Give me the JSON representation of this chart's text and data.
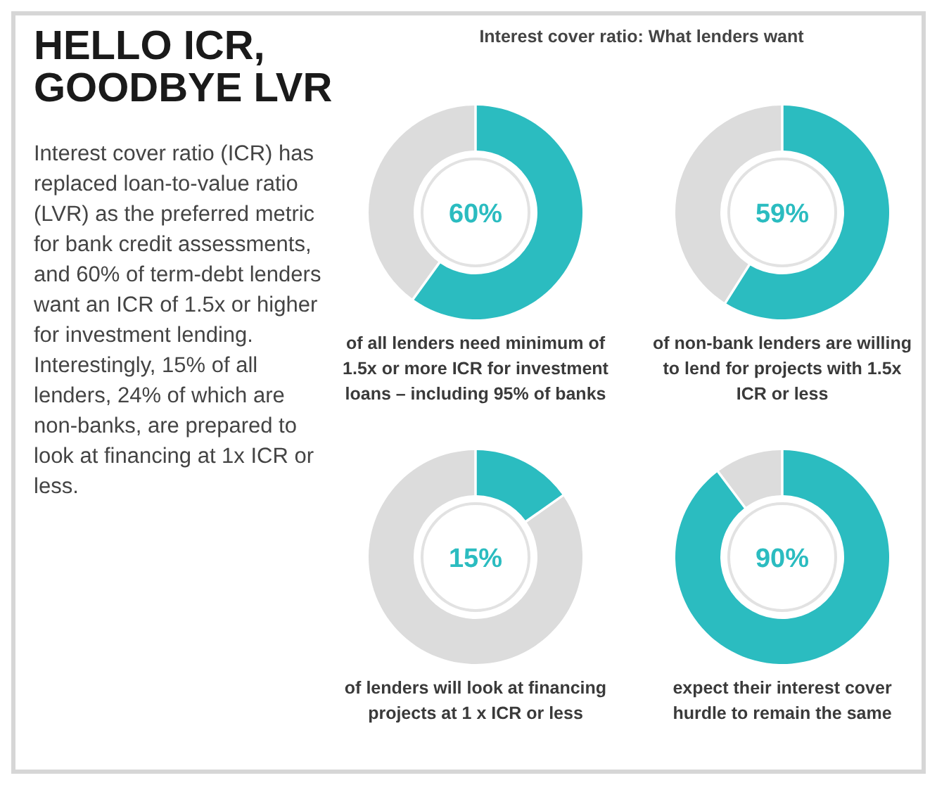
{
  "chart_data": [
    {
      "type": "other",
      "title": "HELLO ICR, GOODBYE LVR",
      "subtitle": "Interest cover ratio: What lenders want",
      "annotations": [
        "Interest cover ratio (ICR) has replaced loan-to-value ratio (LVR) as the preferred metric for bank credit assessments, and 60% of term-debt lenders want an ICR of 1.5x or higher for investment lending. Interestingly, 15% of all lenders, 24% of which are non-banks, are prepared to look at financing at 1x ICR or less."
      ]
    },
    {
      "type": "donut",
      "categories": [
        null,
        null
      ],
      "values": [
        60,
        40
      ],
      "colors": [
        "#2bbcc0",
        "#dcdcdc"
      ],
      "annotations": [
        "60%",
        "of all lenders need minimum of 1.5x or more ICR for investment loans – including 95% of banks"
      ]
    },
    {
      "type": "donut",
      "categories": [
        null,
        null
      ],
      "values": [
        59,
        41
      ],
      "colors": [
        "#2bbcc0",
        "#dcdcdc"
      ],
      "annotations": [
        "59%",
        "of non-bank lenders are willing to lend for projects with 1.5x ICR or less"
      ]
    },
    {
      "type": "donut",
      "categories": [
        null,
        null
      ],
      "values": [
        15,
        85
      ],
      "colors": [
        "#2bbcc0",
        "#dcdcdc"
      ],
      "annotations": [
        "15%",
        "of lenders will look at financing projects at 1 x ICR or less"
      ]
    },
    {
      "type": "donut",
      "categories": [
        null,
        null
      ],
      "values": [
        90,
        10
      ],
      "colors": [
        "#2bbcc0",
        "#dcdcdc"
      ],
      "annotations": [
        "90%",
        "expect their interest cover hurdle to remain the same"
      ]
    }
  ]
}
